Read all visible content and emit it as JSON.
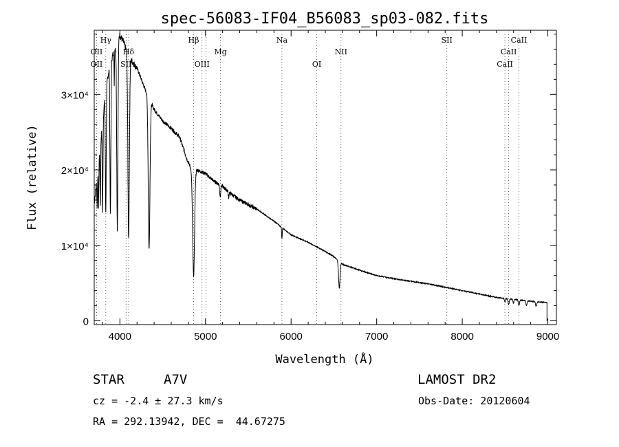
{
  "chart_data": {
    "type": "line",
    "title": "spec-56083-IF04_B56083_sp03-082.fits",
    "xlabel": "Wavelength (Å)",
    "ylabel": "Flux (relative)",
    "xlim": [
      3700,
      9100
    ],
    "ylim": [
      -500,
      38500
    ],
    "x_ticks": [
      4000,
      5000,
      6000,
      7000,
      8000,
      9000
    ],
    "y_ticks": [
      {
        "value": 0,
        "label": "0"
      },
      {
        "value": 10000,
        "label": "1×10⁴"
      },
      {
        "value": 20000,
        "label": "2×10⁴"
      },
      {
        "value": 30000,
        "label": "3×10⁴"
      }
    ],
    "series": [
      {
        "name": "flux",
        "continuum": [
          [
            3700,
            15500
          ],
          [
            3760,
            22000
          ],
          [
            3820,
            29000
          ],
          [
            3880,
            34000
          ],
          [
            3940,
            36000
          ],
          [
            3990,
            38000
          ],
          [
            4040,
            37000
          ],
          [
            4100,
            35000
          ],
          [
            4200,
            33500
          ],
          [
            4300,
            30500
          ],
          [
            4400,
            28000
          ],
          [
            4500,
            26500
          ],
          [
            4600,
            25500
          ],
          [
            4700,
            24300
          ],
          [
            4780,
            21500
          ],
          [
            4840,
            20000
          ],
          [
            4900,
            20000
          ],
          [
            5000,
            19500
          ],
          [
            5100,
            18500
          ],
          [
            5200,
            17800
          ],
          [
            5300,
            16800
          ],
          [
            5400,
            16000
          ],
          [
            5600,
            14800
          ],
          [
            5800,
            13200
          ],
          [
            6000,
            11400
          ],
          [
            6200,
            10400
          ],
          [
            6400,
            9200
          ],
          [
            6500,
            8500
          ],
          [
            6600,
            7500
          ],
          [
            6800,
            6700
          ],
          [
            7000,
            6000
          ],
          [
            7300,
            5400
          ],
          [
            7600,
            4900
          ],
          [
            8000,
            4000
          ],
          [
            8400,
            3100
          ],
          [
            8800,
            2600
          ],
          [
            8990,
            2400
          ]
        ],
        "absorption": [
          {
            "center": 3734,
            "depth": 4000,
            "width": 5
          },
          {
            "center": 3750,
            "depth": 6000,
            "width": 5
          },
          {
            "center": 3771,
            "depth": 8000,
            "width": 5
          },
          {
            "center": 3798,
            "depth": 12000,
            "width": 6
          },
          {
            "center": 3835,
            "depth": 16000,
            "width": 7
          },
          {
            "center": 3889,
            "depth": 20000,
            "width": 8
          },
          {
            "center": 3934,
            "depth": 5000,
            "width": 3
          },
          {
            "center": 3970,
            "depth": 25000,
            "width": 10
          },
          {
            "center": 4102,
            "depth": 24000,
            "width": 12
          },
          {
            "center": 4341,
            "depth": 20000,
            "width": 14
          },
          {
            "center": 4861,
            "depth": 14000,
            "width": 16
          },
          {
            "center": 5172,
            "depth": 1500,
            "width": 8
          },
          {
            "center": 5270,
            "depth": 800,
            "width": 6
          },
          {
            "center": 5893,
            "depth": 1500,
            "width": 5
          },
          {
            "center": 6563,
            "depth": 3500,
            "width": 12
          },
          {
            "center": 8498,
            "depth": 500,
            "width": 8
          },
          {
            "center": 8542,
            "depth": 700,
            "width": 10
          },
          {
            "center": 8598,
            "depth": 500,
            "width": 8
          },
          {
            "center": 8662,
            "depth": 700,
            "width": 10
          },
          {
            "center": 8750,
            "depth": 600,
            "width": 10
          },
          {
            "center": 8863,
            "depth": 600,
            "width": 10
          }
        ],
        "x_end": 8990,
        "end_value": 0
      }
    ],
    "line_markers": [
      {
        "wavelength": 3727,
        "label": "OII",
        "row": 2
      },
      {
        "wavelength": 3727,
        "label": "OII",
        "row": 3
      },
      {
        "wavelength": 3835,
        "label": "Hγ",
        "row": 1
      },
      {
        "wavelength": 4072,
        "label": "SII",
        "row": 3
      },
      {
        "wavelength": 4102,
        "label": "Hδ",
        "row": 2
      },
      {
        "wavelength": 4861,
        "label": "Hβ",
        "row": 1
      },
      {
        "wavelength": 4959,
        "label": "OIII",
        "row": 3
      },
      {
        "wavelength": 5007,
        "label": "",
        "row": 3
      },
      {
        "wavelength": 5175,
        "label": "Mg",
        "row": 2
      },
      {
        "wavelength": 5893,
        "label": "Na",
        "row": 1
      },
      {
        "wavelength": 6300,
        "label": "OI",
        "row": 3
      },
      {
        "wavelength": 6583,
        "label": "NII",
        "row": 2
      },
      {
        "wavelength": 7820,
        "label": "SII",
        "row": 1
      },
      {
        "wavelength": 8498,
        "label": "CaII",
        "row": 3
      },
      {
        "wavelength": 8542,
        "label": "CaII",
        "row": 2
      },
      {
        "wavelength": 8662,
        "label": "CaII",
        "row": 1
      }
    ]
  },
  "info": {
    "object_class": "STAR",
    "subclass": "A7V",
    "survey": "LAMOST DR2",
    "redshift": "cz = -2.4 ± 27.3 km/s",
    "obs_date": "Obs-Date: 20120604",
    "coords": "RA = 292.13942, DEC =  44.67275"
  }
}
